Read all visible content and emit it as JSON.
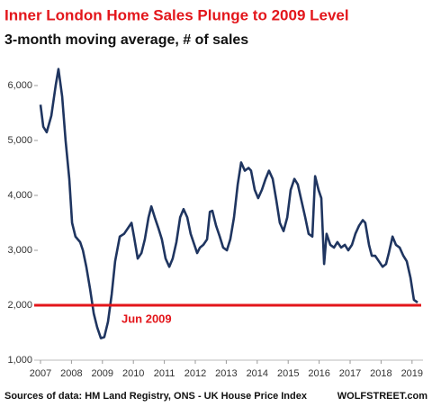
{
  "chart_data": {
    "type": "line",
    "title": "Inner London Home Sales Plunge to 2009 Level",
    "subtitle": "3-month moving average, # of sales",
    "source": "Sources of data: HM Land Registry, ONS - UK House Price Index",
    "credit": "WOLFSTREET.com",
    "annotation": "Jun 2009",
    "reference_line": {
      "value": 2000,
      "color": "#e3161b"
    },
    "color": "#1f3560",
    "xlim": [
      2007,
      2019.2
    ],
    "xticks": [
      2007,
      2008,
      2009,
      2010,
      2011,
      2012,
      2013,
      2014,
      2015,
      2016,
      2017,
      2018,
      2019
    ],
    "ylim": [
      1000,
      6400
    ],
    "yticks": [
      {
        "value": 1000,
        "label": "1,000"
      },
      {
        "value": 2000,
        "label": "2,000"
      },
      {
        "value": 3000,
        "label": "3,000"
      },
      {
        "value": 4000,
        "label": "4,000"
      },
      {
        "value": 5000,
        "label": "5,000"
      },
      {
        "value": 6000,
        "label": "6,000"
      }
    ],
    "grid": false,
    "x": [
      2007.0,
      2007.09,
      2007.2,
      2007.35,
      2007.49,
      2007.58,
      2007.7,
      2007.81,
      2007.93,
      2008.02,
      2008.13,
      2008.28,
      2008.37,
      2008.48,
      2008.6,
      2008.72,
      2008.83,
      2008.95,
      2009.06,
      2009.18,
      2009.3,
      2009.41,
      2009.56,
      2009.7,
      2009.82,
      2009.94,
      2010.02,
      2010.14,
      2010.26,
      2010.37,
      2010.49,
      2010.58,
      2010.69,
      2010.81,
      2010.92,
      2011.04,
      2011.16,
      2011.27,
      2011.39,
      2011.51,
      2011.62,
      2011.74,
      2011.85,
      2011.97,
      2012.06,
      2012.15,
      2012.26,
      2012.38,
      2012.47,
      2012.55,
      2012.67,
      2012.79,
      2012.9,
      2013.02,
      2013.13,
      2013.25,
      2013.37,
      2013.48,
      2013.6,
      2013.72,
      2013.8,
      2013.92,
      2014.03,
      2014.15,
      2014.27,
      2014.38,
      2014.5,
      2014.62,
      2014.73,
      2014.85,
      2014.97,
      2015.08,
      2015.2,
      2015.31,
      2015.43,
      2015.55,
      2015.66,
      2015.78,
      2015.87,
      2015.98,
      2016.07,
      2016.16,
      2016.24,
      2016.36,
      2016.48,
      2016.59,
      2016.71,
      2016.83,
      2016.94,
      2017.06,
      2017.17,
      2017.29,
      2017.41,
      2017.49,
      2017.61,
      2017.7,
      2017.81,
      2017.93,
      2018.05,
      2018.16,
      2018.25,
      2018.37,
      2018.48,
      2018.6,
      2018.72,
      2018.83,
      2018.95,
      2019.06,
      2019.18
    ],
    "values": [
      5650,
      5250,
      5150,
      5450,
      6000,
      6300,
      5800,
      5000,
      4300,
      3500,
      3250,
      3150,
      3000,
      2700,
      2300,
      1850,
      1600,
      1400,
      1420,
      1700,
      2200,
      2800,
      3250,
      3300,
      3400,
      3500,
      3250,
      2850,
      2950,
      3200,
      3600,
      3800,
      3600,
      3400,
      3200,
      2850,
      2700,
      2850,
      3150,
      3600,
      3750,
      3600,
      3300,
      3100,
      2950,
      3050,
      3100,
      3200,
      3700,
      3720,
      3450,
      3250,
      3050,
      3000,
      3200,
      3600,
      4200,
      4600,
      4450,
      4500,
      4450,
      4100,
      3950,
      4100,
      4300,
      4450,
      4300,
      3900,
      3500,
      3350,
      3600,
      4100,
      4300,
      4200,
      3900,
      3600,
      3300,
      3250,
      4350,
      4100,
      3950,
      2750,
      3300,
      3100,
      3050,
      3150,
      3050,
      3100,
      3000,
      3100,
      3300,
      3450,
      3550,
      3500,
      3100,
      2900,
      2900,
      2800,
      2700,
      2750,
      2950,
      3250,
      3100,
      3050,
      2900,
      2800,
      2500,
      2100,
      2050
    ]
  }
}
